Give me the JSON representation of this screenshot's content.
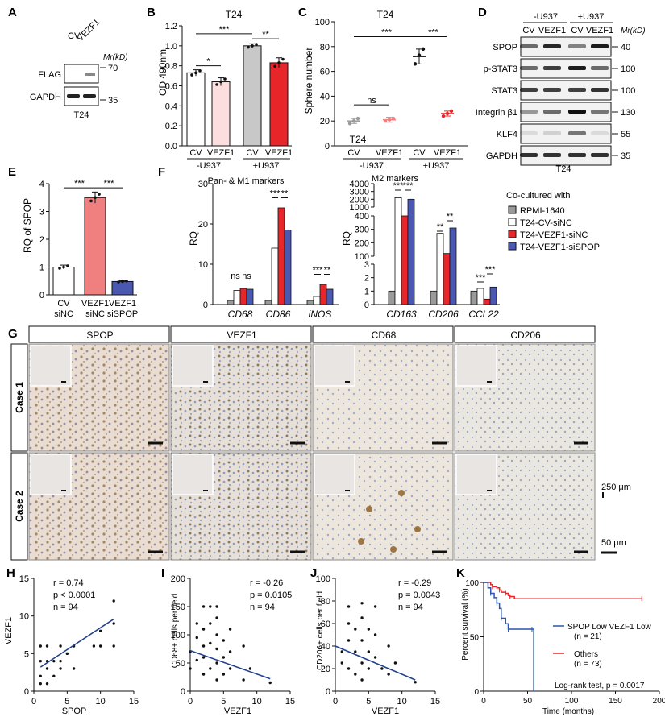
{
  "panel_labels": {
    "A": "A",
    "B": "B",
    "C": "C",
    "D": "D",
    "E": "E",
    "F": "F",
    "G": "G",
    "H": "H",
    "I": "I",
    "J": "J",
    "K": "K"
  },
  "colors": {
    "cv": "#ffffff",
    "vezf1_light": "#fcdede",
    "gray": "#c8c8c8",
    "red": "#e8262a",
    "salmon": "#f08080",
    "blue": "#4a58b0",
    "rpmi": "#9a9a9a",
    "navy": "#23408e",
    "kmred": "#e8262a",
    "kmblue": "#2a55b0"
  },
  "panelA": {
    "lanes": [
      "CV",
      "VEZF1"
    ],
    "mr": "Mr(kD)",
    "rows": [
      {
        "name": "FLAG",
        "marker": "70"
      },
      {
        "name": "GAPDH",
        "marker": "35"
      }
    ],
    "cell": "T24"
  },
  "panelD": {
    "groups": [
      "-U937",
      "+U937"
    ],
    "lanes": [
      "CV",
      "VEZF1",
      "CV",
      "VEZF1"
    ],
    "mr": "Mr(kD)",
    "rows": [
      {
        "name": "SPOP",
        "marker": "40"
      },
      {
        "name": "p-STAT3",
        "marker": "100"
      },
      {
        "name": "STAT3",
        "marker": "100"
      },
      {
        "name": "Integrin β1",
        "marker": "130"
      },
      {
        "name": "KLF4",
        "marker": "55"
      },
      {
        "name": "GAPDH",
        "marker": "35"
      }
    ],
    "cell": "T24"
  },
  "panelG": {
    "columns": [
      "SPOP",
      "VEZF1",
      "CD68",
      "CD206"
    ],
    "rows": [
      "Case 1",
      "Case 2"
    ],
    "scale_inset": "250 μm",
    "scale_main": "50 μm"
  },
  "panelE_labels": {
    "row1": [
      "CV",
      "VEZF1",
      "VEZF1"
    ],
    "row2": [
      "siNC",
      "siNC",
      "siSPOP"
    ]
  },
  "panelB_labels": {
    "groups": [
      "-U937",
      "+U937"
    ],
    "cats": [
      "CV",
      "VEZF1",
      "CV",
      "VEZF1"
    ]
  },
  "panelC_labels": {
    "groups": [
      "-U937",
      "+U937"
    ],
    "cats": [
      "CV",
      "VEZF1",
      "CV",
      "VEZF1"
    ],
    "inner": "T24"
  },
  "panelF_labels": {
    "left_title": "Pan- & M1 markers",
    "right_title": "M2 markers",
    "legend_title": "Co-cultured with"
  },
  "panelK_labels": {
    "others": "Others",
    "others_n": "(n = 73)",
    "spop": "SPOP Low VEZF1 Low",
    "spop_n": "(n = 21)",
    "logrank": "Log-rank test, p = 0.0017"
  },
  "chart_data": [
    {
      "id": "B",
      "type": "bar",
      "title": "T24",
      "ylabel": "OD 490nm",
      "ylim": [
        0,
        1.2
      ],
      "yticks": [
        0,
        0.2,
        0.4,
        0.6,
        0.8,
        1.0,
        1.2
      ],
      "categories": [
        "CV -U937",
        "VEZF1 -U937",
        "CV +U937",
        "VEZF1 +U937"
      ],
      "values": [
        0.73,
        0.64,
        1.0,
        0.83
      ],
      "errors": [
        0.03,
        0.04,
        0.02,
        0.05
      ],
      "annotations": [
        {
          "text": "*",
          "between": [
            0,
            1
          ]
        },
        {
          "text": "**",
          "between": [
            2,
            3
          ]
        },
        {
          "text": "***",
          "between": [
            0,
            2
          ]
        }
      ]
    },
    {
      "id": "C",
      "type": "scatter",
      "title": "T24",
      "ylabel": "Sphere number",
      "ylim": [
        0,
        100
      ],
      "yticks": [
        0,
        20,
        40,
        60,
        80,
        100
      ],
      "categories": [
        "CV -U937",
        "VEZF1 -U937",
        "CV +U937",
        "VEZF1 +U937"
      ],
      "values": [
        20,
        21,
        72,
        26
      ],
      "errors": [
        2,
        2,
        6,
        2
      ],
      "points": [
        [
          18,
          20,
          22
        ],
        [
          20,
          21,
          22
        ],
        [
          66,
          73,
          78
        ],
        [
          24,
          26,
          28
        ]
      ],
      "annotations": [
        {
          "text": "ns",
          "between": [
            0,
            1
          ]
        },
        {
          "text": "***",
          "between": [
            0,
            2
          ]
        },
        {
          "text": "***",
          "between": [
            2,
            3
          ]
        }
      ]
    },
    {
      "id": "E",
      "type": "bar",
      "ylabel": "RQ of SPOP",
      "ylim": [
        0,
        4
      ],
      "yticks": [
        0,
        1,
        2,
        3,
        4
      ],
      "categories": [
        "CV siNC",
        "VEZF1 siNC",
        "VEZF1 siSPOP"
      ],
      "values": [
        1.0,
        3.5,
        0.48
      ],
      "errors": [
        0.07,
        0.2,
        0.03
      ],
      "annotations": [
        {
          "text": "***",
          "between": [
            0,
            1
          ]
        },
        {
          "text": "***",
          "between": [
            1,
            2
          ]
        }
      ]
    },
    {
      "id": "F-left",
      "type": "bar",
      "ylabel": "RQ",
      "ylim": [
        0,
        30
      ],
      "yticks": [
        0,
        10,
        20,
        30
      ],
      "categories": [
        "CD68",
        "CD86",
        "iNOS"
      ],
      "series": [
        {
          "name": "RPMI-1640",
          "values": [
            1.0,
            1.0,
            1.0
          ]
        },
        {
          "name": "T24-CV-siNC",
          "values": [
            3.5,
            14.0,
            2.0
          ]
        },
        {
          "name": "T24-VEZF1-siNC",
          "values": [
            4.0,
            24.0,
            5.0
          ]
        },
        {
          "name": "T24-VEZF1-siSPOP",
          "values": [
            3.8,
            18.5,
            3.8
          ]
        }
      ],
      "annotations": [
        "ns",
        "ns",
        "***",
        "**",
        "***",
        "**"
      ]
    },
    {
      "id": "F-right",
      "type": "bar",
      "ylabel": "RQ",
      "broken_axis": true,
      "yticks": [
        0,
        1,
        2,
        3,
        100,
        200,
        300,
        400,
        1000,
        2000,
        3000,
        4000
      ],
      "categories": [
        "CD163",
        "CD206",
        "CCL22"
      ],
      "series": [
        {
          "name": "RPMI-1640",
          "values": [
            1.0,
            1.0,
            1.0
          ]
        },
        {
          "name": "T24-CV-siNC",
          "values": [
            2200,
            270,
            1.2
          ]
        },
        {
          "name": "T24-VEZF1-siNC",
          "values": [
            700,
            120,
            0.4
          ]
        },
        {
          "name": "T24-VEZF1-siSPOP",
          "values": [
            2000,
            310,
            1.3
          ]
        }
      ],
      "annotations": [
        "***",
        "***",
        "**",
        "**",
        "***",
        "***"
      ]
    },
    {
      "id": "H",
      "type": "scatter",
      "xlabel": "SPOP",
      "ylabel": "VEZF1",
      "xlim": [
        0,
        15
      ],
      "ylim": [
        0,
        15
      ],
      "xticks": [
        0,
        5,
        10,
        15
      ],
      "yticks": [
        0,
        5,
        10,
        15
      ],
      "stats": [
        "r = 0.74",
        "p < 0.0001",
        "n = 94"
      ],
      "fit": {
        "x": [
          1,
          12
        ],
        "y": [
          3.2,
          9.6
        ]
      },
      "points": [
        [
          1,
          1
        ],
        [
          1,
          2
        ],
        [
          1,
          4
        ],
        [
          1,
          6
        ],
        [
          2,
          1
        ],
        [
          2,
          3
        ],
        [
          2,
          4
        ],
        [
          2,
          6
        ],
        [
          3,
          2
        ],
        [
          3,
          4
        ],
        [
          4,
          3
        ],
        [
          4,
          4
        ],
        [
          4,
          6
        ],
        [
          5,
          5
        ],
        [
          6,
          3
        ],
        [
          6,
          6
        ],
        [
          9,
          6
        ],
        [
          10,
          6
        ],
        [
          10,
          8
        ],
        [
          12,
          6
        ],
        [
          12,
          9
        ],
        [
          12,
          12
        ]
      ]
    },
    {
      "id": "I",
      "type": "scatter",
      "xlabel": "VEZF1",
      "ylabel": "CD68+ cells per field",
      "xlim": [
        0,
        15
      ],
      "ylim": [
        0,
        200
      ],
      "xticks": [
        0,
        5,
        10,
        15
      ],
      "yticks": [
        0,
        50,
        100,
        150,
        200
      ],
      "stats": [
        "r = -0.26",
        "p = 0.0105",
        "n = 94"
      ],
      "fit": {
        "x": [
          0,
          12
        ],
        "y": [
          72,
          22
        ]
      },
      "points": [
        [
          0,
          40
        ],
        [
          0,
          70
        ],
        [
          1,
          55
        ],
        [
          1,
          95
        ],
        [
          1,
          120
        ],
        [
          2,
          30
        ],
        [
          2,
          60
        ],
        [
          2,
          80
        ],
        [
          2,
          110
        ],
        [
          2,
          150
        ],
        [
          3,
          40
        ],
        [
          3,
          85
        ],
        [
          3,
          120
        ],
        [
          3,
          150
        ],
        [
          4,
          20
        ],
        [
          4,
          50
        ],
        [
          4,
          75
        ],
        [
          4,
          100
        ],
        [
          4,
          130
        ],
        [
          4,
          150
        ],
        [
          5,
          30
        ],
        [
          5,
          60
        ],
        [
          5,
          90
        ],
        [
          6,
          40
        ],
        [
          6,
          70
        ],
        [
          6,
          110
        ],
        [
          8,
          20
        ],
        [
          8,
          80
        ],
        [
          9,
          40
        ],
        [
          12,
          15
        ]
      ]
    },
    {
      "id": "J",
      "type": "scatter",
      "xlabel": "VEZF1",
      "ylabel": "CD206+ cells per field",
      "xlim": [
        0,
        15
      ],
      "ylim": [
        0,
        100
      ],
      "xticks": [
        0,
        5,
        10,
        15
      ],
      "yticks": [
        0,
        20,
        40,
        60,
        80,
        100
      ],
      "stats": [
        "r = -0.29",
        "p = 0.0043",
        "n = 94"
      ],
      "fit": {
        "x": [
          0,
          12
        ],
        "y": [
          40,
          10
        ]
      },
      "points": [
        [
          1,
          25
        ],
        [
          1,
          35
        ],
        [
          2,
          20
        ],
        [
          2,
          45
        ],
        [
          2,
          60
        ],
        [
          2,
          75
        ],
        [
          3,
          15
        ],
        [
          3,
          35
        ],
        [
          3,
          55
        ],
        [
          4,
          10
        ],
        [
          4,
          25
        ],
        [
          4,
          45
        ],
        [
          4,
          65
        ],
        [
          4,
          78
        ],
        [
          5,
          20
        ],
        [
          5,
          35
        ],
        [
          5,
          55
        ],
        [
          6,
          30
        ],
        [
          6,
          50
        ],
        [
          6,
          75
        ],
        [
          7,
          20
        ],
        [
          8,
          15
        ],
        [
          8,
          40
        ],
        [
          9,
          25
        ],
        [
          12,
          8
        ]
      ]
    },
    {
      "id": "K",
      "type": "line",
      "xlabel": "Time (months)",
      "ylabel": "Percent survival (%)",
      "xlim": [
        0,
        200
      ],
      "ylim": [
        0,
        100
      ],
      "xticks": [
        0,
        50,
        100,
        150,
        200
      ],
      "yticks": [
        0,
        50,
        100
      ],
      "series": [
        {
          "name": "Others (n = 73)",
          "x": [
            0,
            8,
            10,
            15,
            18,
            20,
            25,
            28,
            30,
            35,
            180
          ],
          "y": [
            100,
            98,
            96,
            95,
            93,
            91,
            90,
            88,
            87,
            85,
            85
          ]
        },
        {
          "name": "SPOP Low VEZF1 Low (n = 21)",
          "x": [
            0,
            5,
            8,
            12,
            15,
            18,
            20,
            25,
            28,
            35,
            55,
            57
          ],
          "y": [
            100,
            95,
            90,
            86,
            81,
            76,
            67,
            62,
            57,
            57,
            57,
            0
          ]
        }
      ]
    }
  ]
}
